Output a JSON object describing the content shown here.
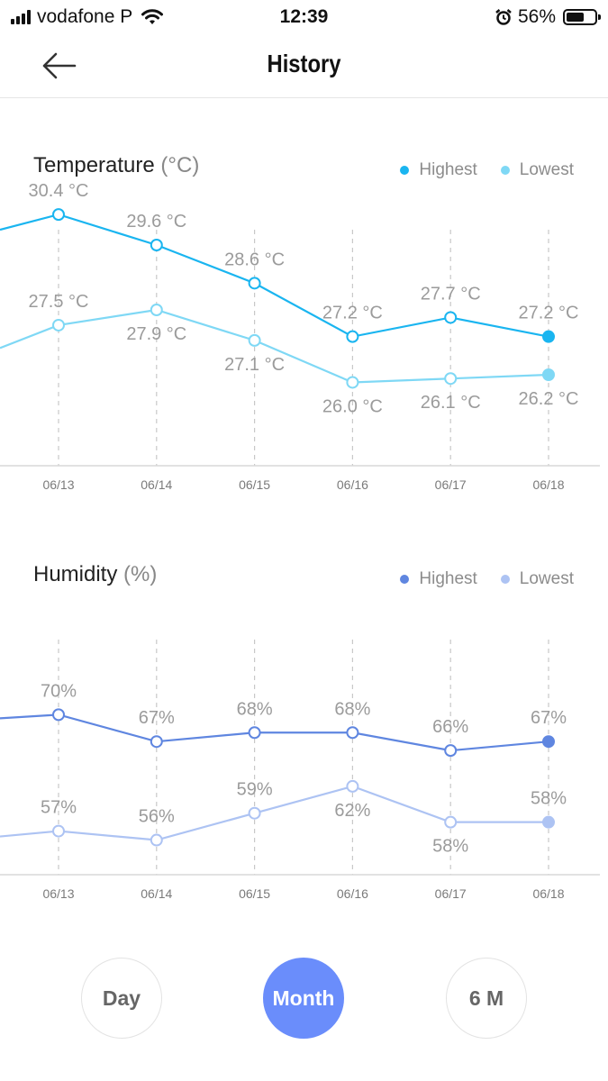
{
  "status_bar": {
    "carrier": "vodafone P",
    "time": "12:39",
    "battery": "56%",
    "icons": [
      "signal-icon",
      "wifi-icon",
      "alarm-icon",
      "battery-icon"
    ]
  },
  "nav": {
    "title": "History",
    "back_icon": "arrow-left-icon"
  },
  "colors": {
    "temp_high": "#1ab5f0",
    "temp_low": "#7fd8f5",
    "hum_high": "#5f86e0",
    "hum_low": "#adc3f3",
    "accent": "#6a8dfb"
  },
  "temperature": {
    "title": "Temperature",
    "unit": "(°C)",
    "legend_high": "Highest",
    "legend_low": "Lowest"
  },
  "humidity": {
    "title": "Humidity",
    "unit": "(%)",
    "legend_high": "Highest",
    "legend_low": "Lowest"
  },
  "period": {
    "options": [
      "Day",
      "Month",
      "6 M"
    ],
    "selected": "Month"
  },
  "chart_data": [
    {
      "type": "line",
      "title": "Temperature (°C)",
      "categories": [
        "06/13",
        "06/14",
        "06/15",
        "06/16",
        "06/17",
        "06/18"
      ],
      "series": [
        {
          "name": "Highest",
          "values": [
            30.4,
            29.6,
            28.6,
            27.2,
            27.7,
            27.2
          ],
          "labels": [
            "30.4 °C",
            "29.6 °C",
            "28.6 °C",
            "27.2 °C",
            "27.7 °C",
            "27.2 °C"
          ],
          "lead_in": 30.0
        },
        {
          "name": "Lowest",
          "values": [
            27.5,
            27.9,
            27.1,
            26.0,
            26.1,
            26.2
          ],
          "labels": [
            "27.5 °C",
            "27.9 °C",
            "27.1 °C",
            "26.0 °C",
            "26.1 °C",
            "26.2 °C"
          ],
          "lead_in": 26.9
        }
      ],
      "ylim": [
        22.8,
        31.3
      ],
      "grid": true,
      "legend": "top-right"
    },
    {
      "type": "line",
      "title": "Humidity (%)",
      "categories": [
        "06/13",
        "06/14",
        "06/15",
        "06/16",
        "06/17",
        "06/18"
      ],
      "series": [
        {
          "name": "Highest",
          "values": [
            70,
            67,
            68,
            68,
            66,
            67
          ],
          "labels": [
            "70%",
            "67%",
            "68%",
            "68%",
            "66%",
            "67%"
          ],
          "lead_in": 69.6
        },
        {
          "name": "Lowest",
          "values": [
            57,
            56,
            59,
            62,
            58,
            58
          ],
          "labels": [
            "57%",
            "56%",
            "59%",
            "62%",
            "58%",
            "58%"
          ],
          "lead_in": 56.4
        }
      ],
      "ylim": [
        47.2,
        80.4
      ],
      "grid": true,
      "legend": "top-right"
    }
  ]
}
